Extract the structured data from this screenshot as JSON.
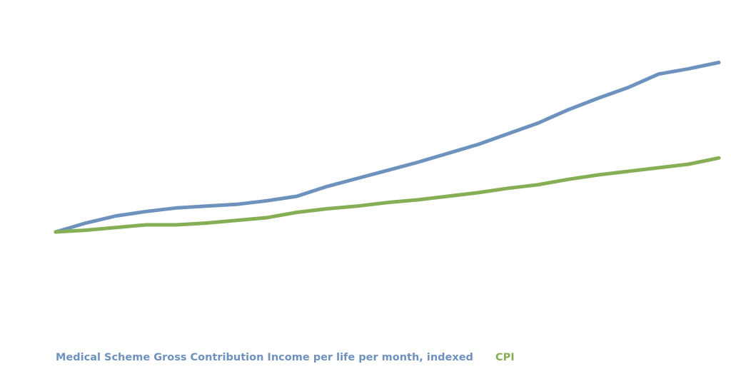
{
  "chart_data": {
    "type": "line",
    "title": "",
    "xlabel": "",
    "ylabel": "",
    "grid": false,
    "legend_position": "bottom",
    "series": [
      {
        "name": "Medical Scheme Gross Contribution Income per life per month, indexed",
        "color": "#6D92BE",
        "values": [
          0,
          10,
          18,
          23,
          27,
          29,
          31,
          35,
          40,
          51,
          60,
          69,
          78,
          88,
          98,
          110,
          122,
          137,
          150,
          162,
          177,
          183,
          190
        ]
      },
      {
        "name": "CPI",
        "color": "#86AE55",
        "values": [
          0,
          2,
          5,
          8,
          8,
          10,
          13,
          16,
          22,
          26,
          29,
          33,
          36,
          40,
          44,
          49,
          53,
          59,
          64,
          68,
          72,
          76,
          83
        ]
      }
    ]
  }
}
